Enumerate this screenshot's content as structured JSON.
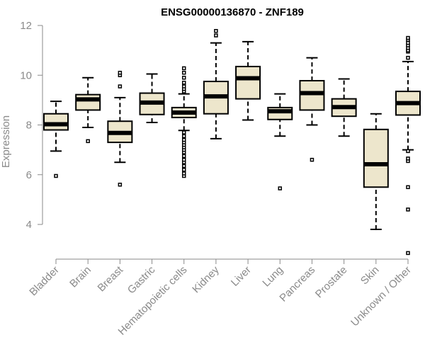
{
  "chart_data": {
    "type": "boxplot",
    "title": "ENSG00000136870 - ZNF189",
    "ylabel": "Expression",
    "xlabel": "",
    "ylim": [
      3.0,
      12.0
    ],
    "yticks": [
      4,
      6,
      8,
      10,
      12
    ],
    "box_fill": "#ede6cc",
    "categories": [
      "Bladder",
      "Brain",
      "Breast",
      "Gastric",
      "Hematopoietic cells",
      "Kidney",
      "Liver",
      "Lung",
      "Pancreas",
      "Prostate",
      "Skin",
      "Unknown / Other"
    ],
    "boxes": [
      {
        "whisker_low": 6.95,
        "q1": 7.8,
        "median": 8.03,
        "q3": 8.45,
        "whisker_high": 8.95,
        "outliers": [
          5.95
        ]
      },
      {
        "whisker_low": 7.9,
        "q1": 8.6,
        "median": 9.03,
        "q3": 9.22,
        "whisker_high": 9.9,
        "outliers": [
          7.35
        ]
      },
      {
        "whisker_low": 6.5,
        "q1": 7.3,
        "median": 7.68,
        "q3": 8.15,
        "whisker_high": 9.1,
        "outliers": [
          5.6,
          9.55,
          10.0,
          10.1
        ]
      },
      {
        "whisker_low": 8.1,
        "q1": 8.42,
        "median": 8.9,
        "q3": 9.28,
        "whisker_high": 10.05,
        "outliers": []
      },
      {
        "whisker_low": 7.78,
        "q1": 8.3,
        "median": 8.5,
        "q3": 8.7,
        "whisker_high": 9.25,
        "outliers": [
          5.95,
          6.05,
          6.2,
          6.35,
          6.5,
          6.6,
          6.75,
          6.9,
          7.0,
          7.1,
          7.2,
          7.3,
          7.4,
          7.55,
          7.7,
          9.35,
          9.45,
          9.55,
          9.7,
          9.9,
          10.1,
          10.28
        ]
      },
      {
        "whisker_low": 7.45,
        "q1": 8.45,
        "median": 9.15,
        "q3": 9.75,
        "whisker_high": 11.3,
        "outliers": [
          11.6,
          11.78
        ]
      },
      {
        "whisker_low": 8.2,
        "q1": 9.05,
        "median": 9.88,
        "q3": 10.35,
        "whisker_high": 11.35,
        "outliers": []
      },
      {
        "whisker_low": 7.55,
        "q1": 8.22,
        "median": 8.55,
        "q3": 8.7,
        "whisker_high": 9.25,
        "outliers": [
          5.45
        ]
      },
      {
        "whisker_low": 8.0,
        "q1": 8.6,
        "median": 9.28,
        "q3": 9.78,
        "whisker_high": 10.7,
        "outliers": [
          6.6
        ]
      },
      {
        "whisker_low": 7.55,
        "q1": 8.35,
        "median": 8.72,
        "q3": 9.05,
        "whisker_high": 9.85,
        "outliers": []
      },
      {
        "whisker_low": 3.8,
        "q1": 5.5,
        "median": 6.42,
        "q3": 7.82,
        "whisker_high": 8.45,
        "outliers": []
      },
      {
        "whisker_low": 7.0,
        "q1": 8.4,
        "median": 8.88,
        "q3": 9.35,
        "whisker_high": 10.55,
        "outliers": [
          2.85,
          4.6,
          5.5,
          6.55,
          6.65,
          6.95,
          10.7,
          10.95,
          11.0,
          11.1,
          11.2,
          11.3,
          11.42,
          11.5
        ]
      }
    ]
  }
}
